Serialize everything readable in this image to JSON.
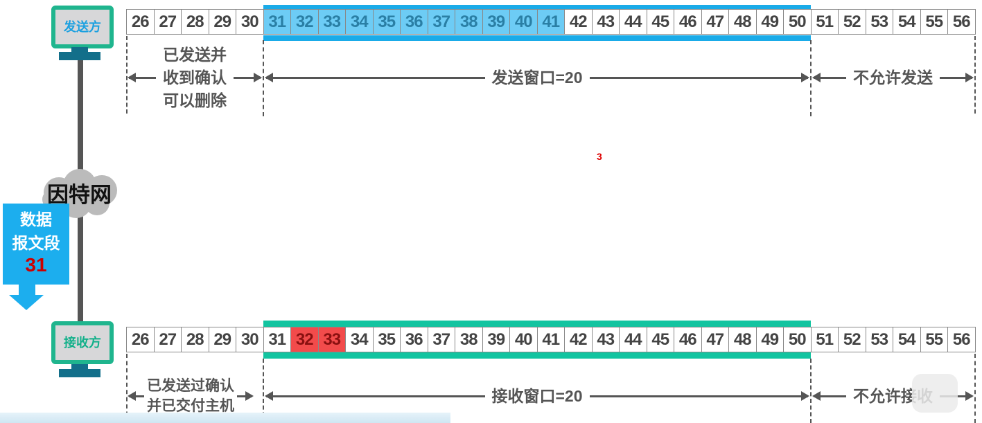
{
  "sender": {
    "label": "发送方",
    "cells": [
      26,
      27,
      28,
      29,
      30,
      31,
      32,
      33,
      34,
      35,
      36,
      37,
      38,
      39,
      40,
      41,
      42,
      43,
      44,
      45,
      46,
      47,
      48,
      49,
      50,
      51,
      52,
      53,
      54,
      55,
      56
    ],
    "sent_cells": [
      31,
      32,
      33,
      34,
      35,
      36,
      37,
      38,
      39,
      40,
      41
    ],
    "segments": {
      "acked": "已发送并\n收到确认\n可以删除",
      "window": "发送窗口=20",
      "forbidden": "不允许发送"
    },
    "color": "#1aabe8"
  },
  "receiver": {
    "label": "接收方",
    "cells": [
      26,
      27,
      28,
      29,
      30,
      31,
      32,
      33,
      34,
      35,
      36,
      37,
      38,
      39,
      40,
      41,
      42,
      43,
      44,
      45,
      46,
      47,
      48,
      49,
      50,
      51,
      52,
      53,
      54,
      55,
      56
    ],
    "received_cells": [
      32,
      33
    ],
    "segments": {
      "delivered": "已发送过确认\n并已交付主机",
      "window": "接收窗口=20",
      "forbidden": "不允许接收"
    },
    "color": "#12c4a0"
  },
  "network": {
    "label": "因特网"
  },
  "segment_packet": {
    "label": "数据\n报文段",
    "number": "31"
  },
  "marker": "3"
}
